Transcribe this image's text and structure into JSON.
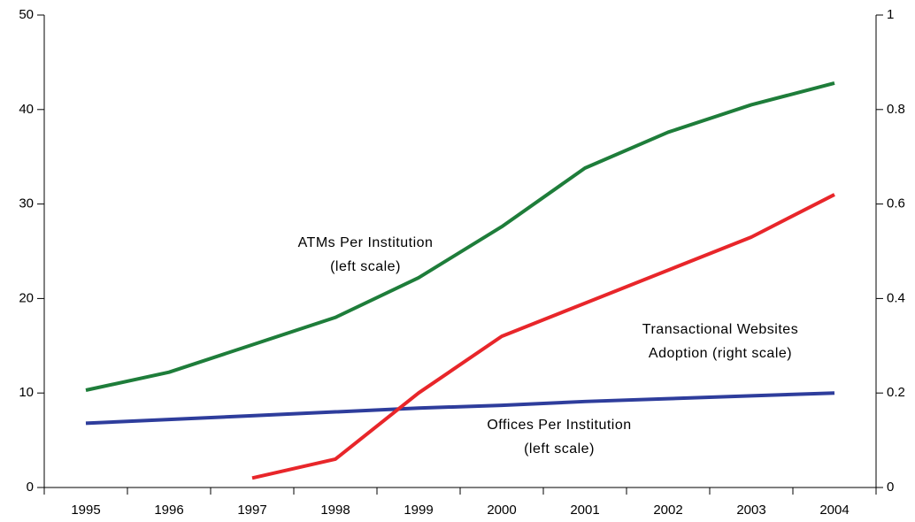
{
  "chart_data": {
    "type": "line",
    "categories": [
      "1995",
      "1996",
      "1997",
      "1998",
      "1999",
      "2000",
      "2001",
      "2002",
      "2003",
      "2004"
    ],
    "series": [
      {
        "color": "#1e7d3a",
        "values": [
          10.3,
          12.2,
          15.1,
          18.0,
          22.2,
          27.6,
          33.8,
          37.6,
          40.5,
          42.8
        ]
      },
      {
        "color": "#2e3d9c",
        "values": [
          6.8,
          7.2,
          7.6,
          8.0,
          8.4,
          8.7,
          9.1,
          9.4,
          9.7,
          10.0
        ]
      },
      {
        "color": "#e8262a",
        "axis": "y2",
        "values": [
          null,
          null,
          0.02,
          0.06,
          0.2,
          0.32,
          0.39,
          0.46,
          0.53,
          0.62
        ]
      }
    ],
    "ylim": [
      0,
      50
    ],
    "yticks": [
      0,
      10,
      20,
      30,
      40,
      50
    ],
    "y2lim": [
      0,
      1
    ],
    "y2ticks": [
      0,
      0.2,
      0.4,
      0.6,
      0.8,
      1
    ],
    "grid": false,
    "annotations": [
      [
        "ATMs Per Institution",
        "(left scale)"
      ],
      [
        "Transactional Websites",
        "Adoption (right scale)"
      ],
      [
        "Offices Per Institution",
        "(left scale)"
      ]
    ]
  }
}
